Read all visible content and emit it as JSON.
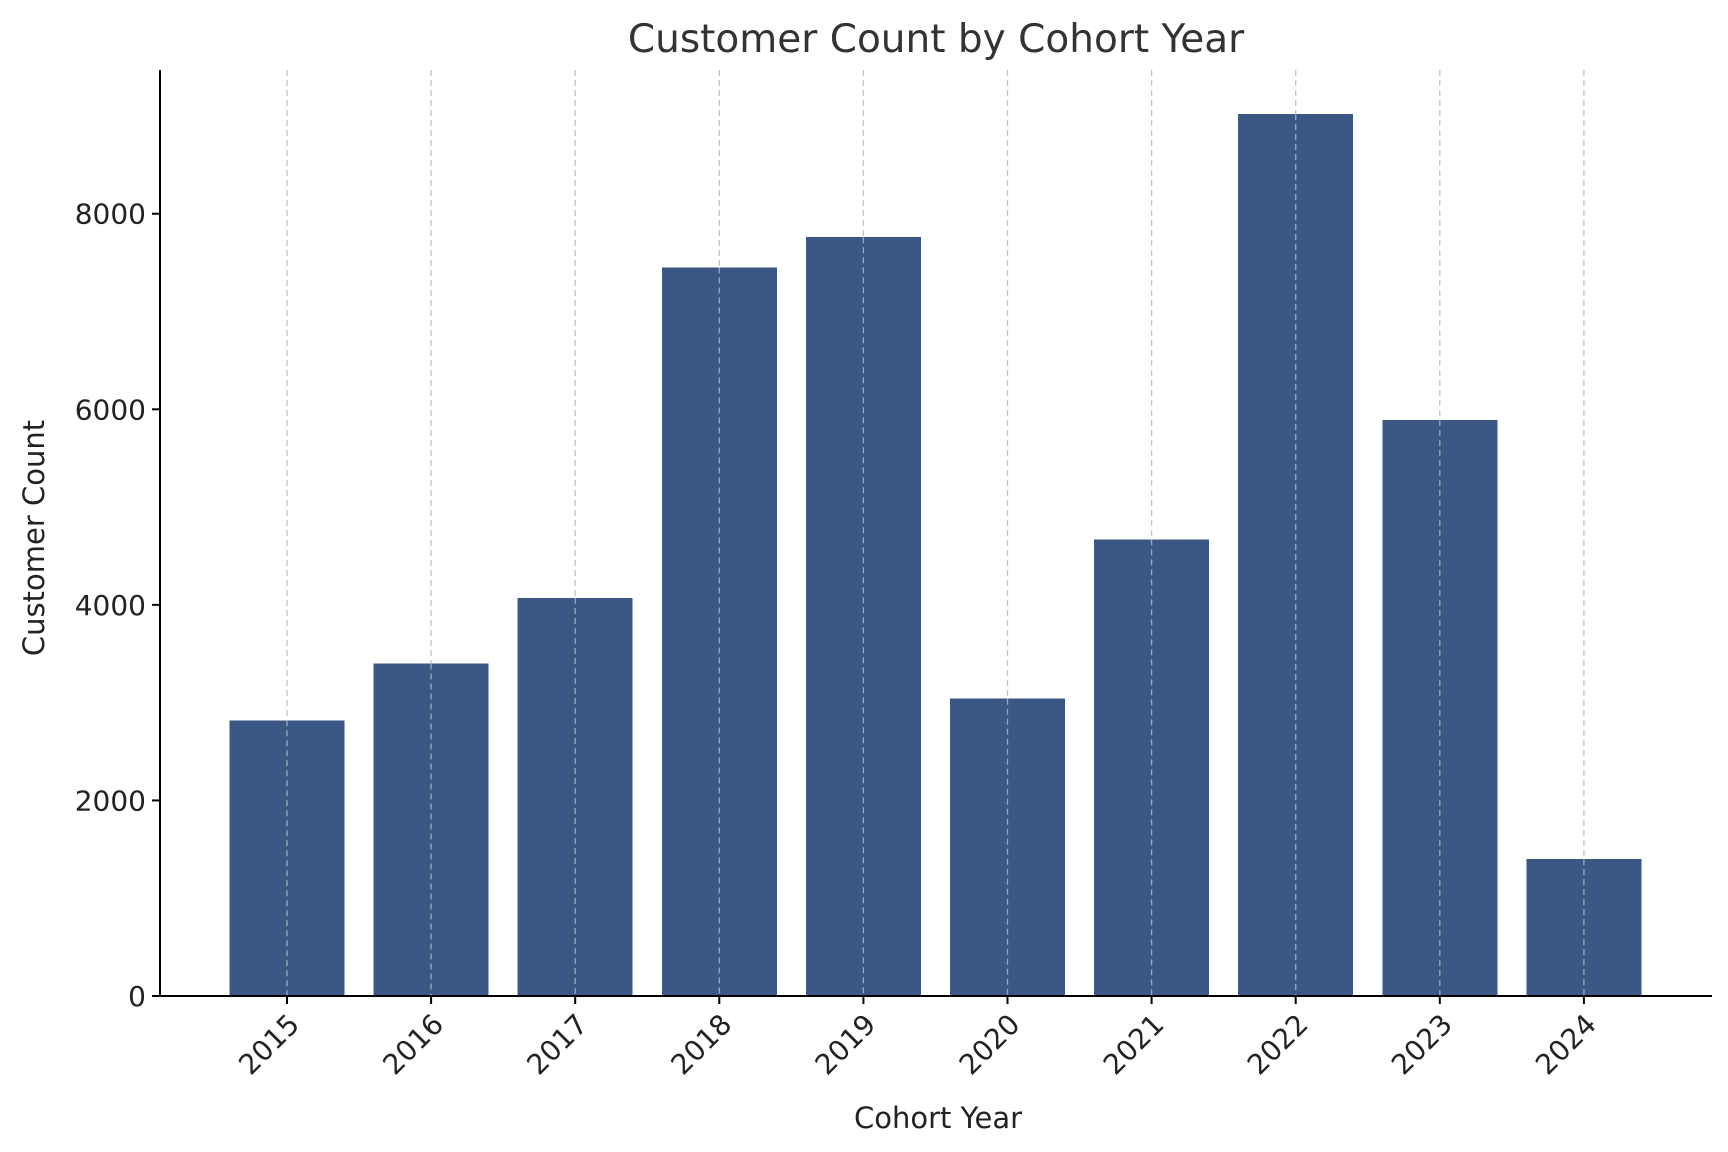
{
  "chart_data": {
    "type": "bar",
    "title": "Customer Count by Cohort Year",
    "xlabel": "Cohort Year",
    "ylabel": "Customer Count",
    "categories": [
      "2015",
      "2016",
      "2017",
      "2018",
      "2019",
      "2020",
      "2021",
      "2022",
      "2023",
      "2024"
    ],
    "values": [
      2820,
      3400,
      4070,
      7450,
      7760,
      3040,
      4670,
      9020,
      5890,
      1400
    ],
    "ylim": [
      0,
      9470
    ],
    "yticks": [
      0,
      2000,
      4000,
      6000,
      8000
    ],
    "grid": "x-dashed",
    "legend": "none",
    "bar_color": "#3a5785",
    "grid_color": "#c4c4c4"
  }
}
